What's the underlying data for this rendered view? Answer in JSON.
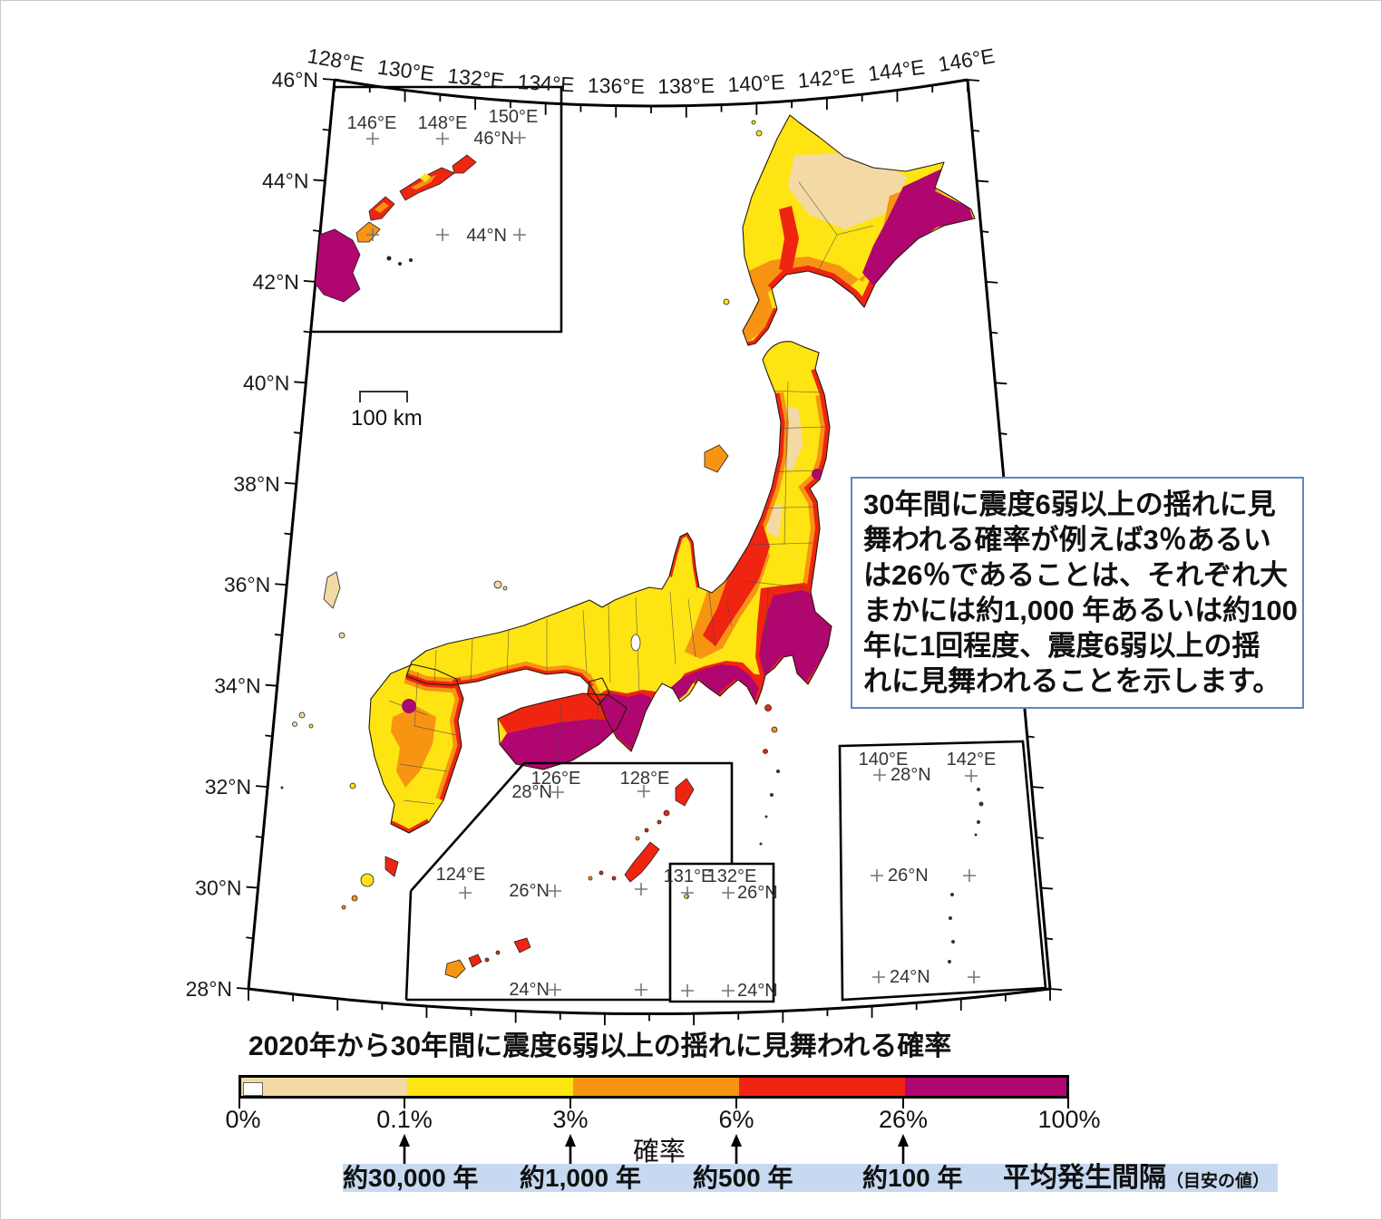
{
  "map": {
    "lon_labels": [
      "128°E",
      "130°E",
      "132°E",
      "134°E",
      "136°E",
      "138°E",
      "140°E",
      "142°E",
      "144°E",
      "146°E"
    ],
    "lat_labels": [
      "46°N",
      "44°N",
      "42°N",
      "40°N",
      "38°N",
      "36°N",
      "34°N",
      "32°N",
      "30°N",
      "28°N"
    ],
    "scale_label": "100 km",
    "insets": {
      "kuril": [
        "146°E",
        "148°E",
        "150°E",
        "46°N",
        "44°N"
      ],
      "okinawa": [
        "126°E",
        "28°N",
        "128°E",
        "124°E",
        "26°N",
        "131°E",
        "132°E",
        "26°N",
        "24°N",
        "24°N"
      ],
      "ogasawara": [
        "140°E",
        "28°N",
        "142°E",
        "26°N",
        "24°N"
      ]
    }
  },
  "note_box": {
    "lines": [
      "30年間に震度6弱以上の揺れに見",
      "舞われる確率が例えば3％あるい",
      "は26％であることは、それぞれ大",
      "まかには約1,000 年あるいは約100",
      "年に1回程度、震度6弱以上の揺",
      "れに見舞われることを示します。"
    ]
  },
  "legend": {
    "title": "2020年から30年間に震度6弱以上の揺れに見舞われる確率",
    "prob_label": "確率",
    "tick_labels": [
      "0%",
      "0.1%",
      "3%",
      "6%",
      "26%",
      "100%"
    ],
    "interval_labels": [
      "約30,000 年",
      "約1,000 年",
      "約500 年",
      "約100 年"
    ],
    "interval_title": "平均発生間隔",
    "interval_note": "（目安の値）",
    "colors": {
      "white": "#ffffff",
      "cream": "#f3d9a3",
      "yellow": "#ffe413",
      "orange": "#f79412",
      "red": "#ef2511",
      "magenta": "#b00670"
    },
    "highlight_bg": "#c6d9f1",
    "box_border": "#5c87c6"
  }
}
